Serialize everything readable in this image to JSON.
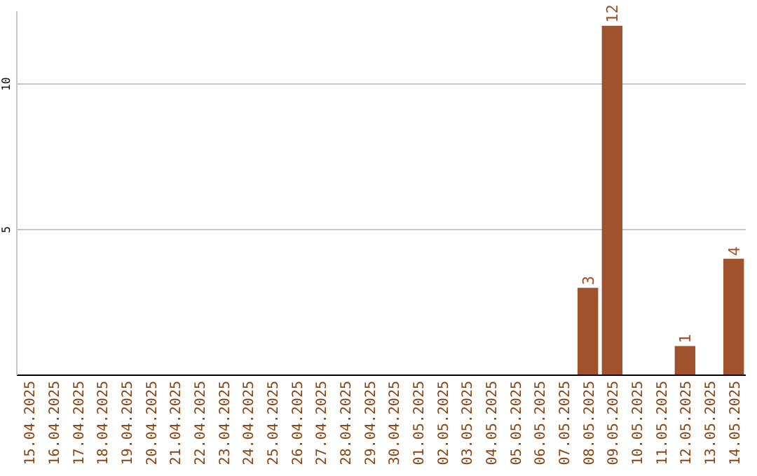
{
  "chart_data": {
    "type": "bar",
    "categories": [
      "15.04.2025",
      "16.04.2025",
      "17.04.2025",
      "18.04.2025",
      "19.04.2025",
      "20.04.2025",
      "21.04.2025",
      "22.04.2025",
      "23.04.2025",
      "24.04.2025",
      "25.04.2025",
      "26.04.2025",
      "27.04.2025",
      "28.04.2025",
      "29.04.2025",
      "30.04.2025",
      "01.05.2025",
      "02.05.2025",
      "03.05.2025",
      "04.05.2025",
      "05.05.2025",
      "06.05.2025",
      "07.05.2025",
      "08.05.2025",
      "09.05.2025",
      "10.05.2025",
      "11.05.2025",
      "12.05.2025",
      "13.05.2025",
      "14.05.2025"
    ],
    "values": [
      0,
      0,
      0,
      0,
      0,
      0,
      0,
      0,
      0,
      0,
      0,
      0,
      0,
      0,
      0,
      0,
      0,
      0,
      0,
      0,
      0,
      0,
      0,
      3,
      12,
      0,
      0,
      1,
      0,
      4
    ],
    "value_labels": [
      null,
      null,
      null,
      null,
      null,
      null,
      null,
      null,
      null,
      null,
      null,
      null,
      null,
      null,
      null,
      null,
      null,
      null,
      null,
      null,
      null,
      null,
      null,
      "3",
      "12",
      null,
      null,
      "1",
      null,
      "4"
    ],
    "color": "#a0522d",
    "ylim": [
      0,
      12.5
    ],
    "yticks": [
      5,
      10
    ],
    "grid": "y"
  }
}
